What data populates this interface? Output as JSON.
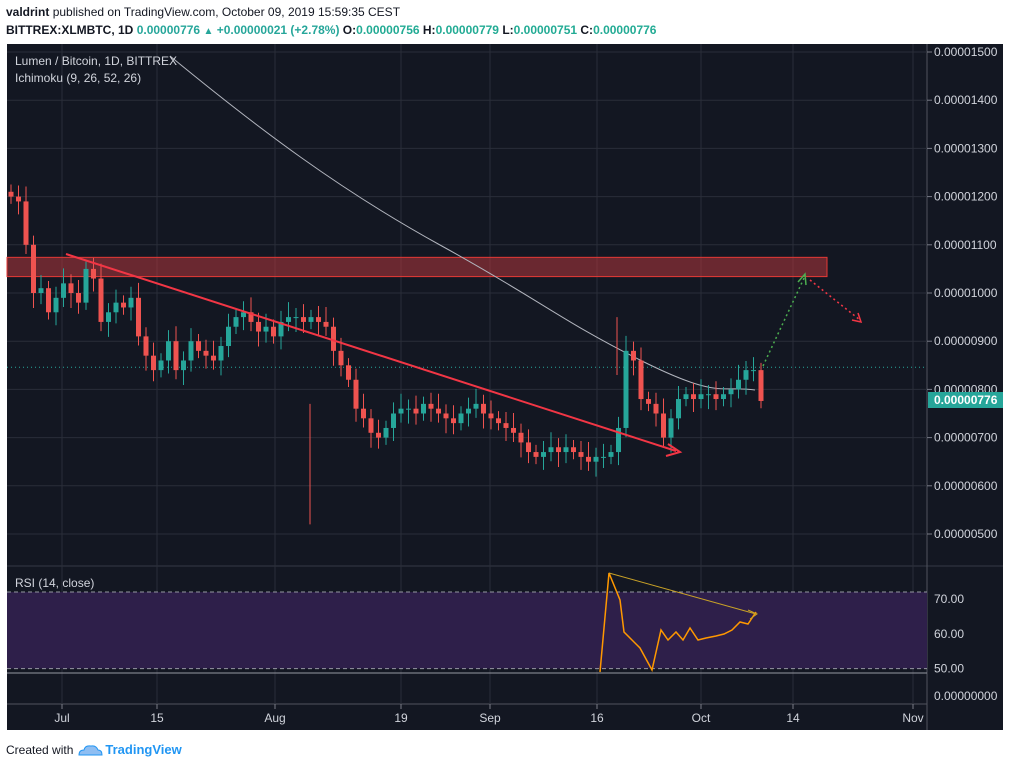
{
  "header": {
    "author": "valdrint",
    "published_text": "published on TradingView.com, October 09, 2019 15:59:35 CEST",
    "symbol": "BITTREX:XLMBTC, 1D",
    "last": "0.00000776",
    "change": "+0.00000021 (+2.78%)",
    "o_label": "O:",
    "o": "0.00000756",
    "h_label": "H:",
    "h": "0.00000779",
    "l_label": "L:",
    "l": "0.00000751",
    "c_label": "C:",
    "c": "0.00000776"
  },
  "legend": {
    "title": "Lumen / Bitcoin, 1D, BITTREX",
    "indicator": "Ichimoku (9, 26, 52, 26)"
  },
  "rsi": {
    "label": "RSI (14, close)",
    "ticks": [
      "70.00",
      "60.00",
      "50.00"
    ],
    "zero_tick": "0.00000000"
  },
  "footer": {
    "created_with": "Created with",
    "brand": "TradingView"
  },
  "colors": {
    "background": "#131722",
    "up": "#26a69a",
    "down": "#ef5350",
    "trendline": "#f23645",
    "resistance_zone": "#b2373d",
    "last_price": "#26a69a",
    "rsi_line": "#ff9800",
    "rsi_band": "#2e1f4a"
  },
  "chart_data": {
    "type": "candlestick",
    "title": "Lumen / Bitcoin, 1D, BITTREX",
    "x_ticks": [
      "Jul",
      "15",
      "Aug",
      "19",
      "Sep",
      "16",
      "Oct",
      "14",
      "Nov"
    ],
    "y_ticks": [
      "0.00001500",
      "0.00001400",
      "0.00001300",
      "0.00001200",
      "0.00001100",
      "0.00001000",
      "0.00000900",
      "0.00000800",
      "0.00000700",
      "0.00000600",
      "0.00000500"
    ],
    "ylim": [
      4.4e-06,
      1.54e-05
    ],
    "last_price_label": "0.00000776",
    "dotted_level": 8.46e-06,
    "resistance_zone": [
      1.034e-05,
      1.074e-05
    ],
    "candles_sample": [
      {
        "o": 1.2,
        "c": 1.19,
        "h": 1.22,
        "l": 1.18
      },
      {
        "o": 1.19,
        "c": 1.1,
        "h": 1.2,
        "l": 1.09
      },
      {
        "o": 1.1,
        "c": 1.0,
        "h": 1.11,
        "l": 0.99
      },
      {
        "o": 1.0,
        "c": 1.01,
        "h": 1.04,
        "l": 0.97
      }
    ],
    "series": [
      {
        "name": "",
        "note": "price candles (x10^-5 BTC), approximate",
        "values": [
          1.2,
          1.19,
          1.1,
          1.0,
          1.01,
          0.96,
          0.99,
          1.02,
          1.0,
          0.98,
          1.05,
          1.03,
          0.94,
          0.96,
          0.98,
          0.97,
          0.99,
          0.91,
          0.87,
          0.84,
          0.86,
          0.9,
          0.84,
          0.86,
          0.9,
          0.88,
          0.87,
          0.86,
          0.89,
          0.93,
          0.95,
          0.96,
          0.94,
          0.92,
          0.93,
          0.91,
          0.94,
          0.95,
          0.95,
          0.94,
          0.95,
          0.94,
          0.93,
          0.88,
          0.85,
          0.82,
          0.76,
          0.74,
          0.71,
          0.7,
          0.72,
          0.75,
          0.76,
          0.76,
          0.75,
          0.77,
          0.76,
          0.75,
          0.74,
          0.73,
          0.75,
          0.76,
          0.77,
          0.75,
          0.74,
          0.73,
          0.72,
          0.71,
          0.69,
          0.67,
          0.66,
          0.67,
          0.68,
          0.67,
          0.68,
          0.67,
          0.66,
          0.65,
          0.66,
          0.66,
          0.67,
          0.72,
          0.88,
          0.86,
          0.78,
          0.77,
          0.75,
          0.7,
          0.74,
          0.78,
          0.79,
          0.78,
          0.79,
          0.79,
          0.78,
          0.79,
          0.8,
          0.82,
          0.84,
          0.84,
          0.776
        ]
      }
    ]
  }
}
